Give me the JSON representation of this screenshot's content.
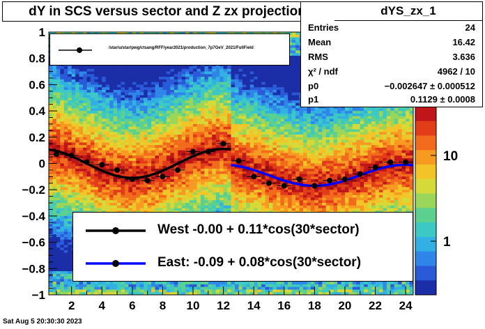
{
  "title": "dY in SCS versus sector and Z zx projection",
  "stats": {
    "name": "dYS_zx_1",
    "rows": [
      {
        "key": "Entries",
        "value": "24"
      },
      {
        "key": "Mean",
        "value": "16.42"
      },
      {
        "key": "RMS",
        "value": "3.636"
      },
      {
        "key": "χ² / ndf",
        "value": "4962 / 10"
      },
      {
        "key": "p0",
        "value": "−0.002647 ± 0.000512"
      },
      {
        "key": "p1",
        "value": "0.1129 ± 0.0008"
      }
    ]
  },
  "legend_top": {
    "label": "/star/u/star/pwg/ctsang/RFF/year2021/production_7p7GeV_2021/FullField"
  },
  "legend_bottom": [
    {
      "label": "West -0.00 +  0.11*cos(30*sector)",
      "color": "#000000"
    },
    {
      "label": "East: -0.09 +  0.08*cos(30*sector)",
      "color": "#0000ff"
    }
  ],
  "footer": "Sat Aug  5 20:30:30 2023",
  "chart_data": {
    "type": "scatter",
    "title": "dY in SCS versus sector and Z zx projection",
    "xlim": [
      0.5,
      24.5
    ],
    "ylim": [
      -1,
      1
    ],
    "x_ticks": [
      2,
      4,
      6,
      8,
      10,
      12,
      14,
      16,
      18,
      20,
      22,
      24
    ],
    "y_ticks": [
      -1,
      -0.8,
      -0.6,
      -0.4,
      -0.2,
      0,
      0.2,
      0.4,
      0.6,
      0.8,
      1
    ],
    "colorbar": {
      "scale": "log",
      "labels": [
        "1",
        "10"
      ],
      "ticks": [
        1,
        10
      ]
    },
    "series": [
      {
        "x": [
          1,
          2,
          3,
          4,
          5,
          6,
          7,
          8,
          9,
          10,
          11,
          12,
          13,
          14,
          15,
          16,
          17,
          18,
          19,
          20,
          21,
          22,
          23,
          24
        ],
        "y": [
          0.07,
          0.06,
          0.01,
          -0.01,
          -0.05,
          -0.12,
          -0.13,
          -0.1,
          -0.05,
          0.09,
          0.09,
          0.15,
          0.02,
          -0.1,
          -0.15,
          -0.17,
          -0.12,
          -0.17,
          -0.13,
          -0.12,
          -0.08,
          -0.03,
          0.01,
          0.01
        ]
      }
    ],
    "fits": [
      {
        "name": "West",
        "p0": -0.0,
        "p1": 0.11,
        "x_range": [
          0.5,
          12.5
        ],
        "color": "#000000"
      },
      {
        "name": "East",
        "p0": -0.09,
        "p1": 0.08,
        "x_range": [
          12.5,
          24.5
        ],
        "color": "#0000ff"
      }
    ]
  }
}
